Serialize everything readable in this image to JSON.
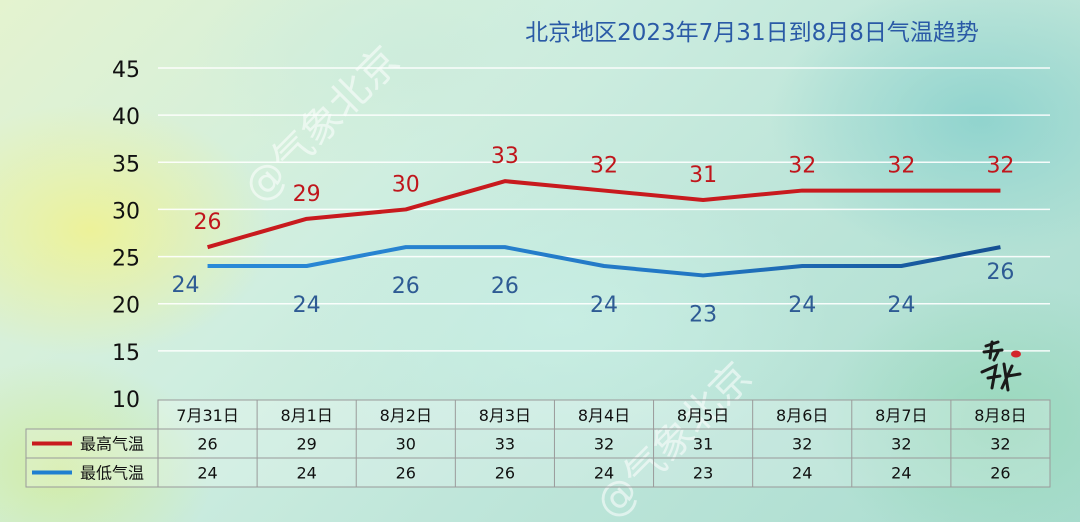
{
  "watermark": "@气象北京",
  "chart_data": {
    "type": "line",
    "title": "北京地区2023年7月31日到8月8日气温趋势",
    "categories": [
      "7月31日",
      "8月1日",
      "8月2日",
      "8月3日",
      "8月4日",
      "8月5日",
      "8月6日",
      "8月7日",
      "8月8日"
    ],
    "ylim": [
      10,
      45
    ],
    "yticks": [
      10,
      15,
      20,
      25,
      30,
      35,
      40,
      45
    ],
    "grid": true,
    "legend": "table-left",
    "series": [
      {
        "name": "最高气温",
        "values": [
          26,
          29,
          30,
          33,
          32,
          31,
          32,
          32,
          32
        ],
        "color": "#c81a1e",
        "label_color": "#c0161c"
      },
      {
        "name": "最低气温",
        "values": [
          24,
          24,
          26,
          26,
          24,
          23,
          24,
          24,
          26
        ],
        "color": "#1f7fd0",
        "label_color": "#2e5b94"
      }
    ]
  },
  "colors": {
    "title": "#2a5aa6",
    "axis_text": "#111111",
    "grid": "#ffffff",
    "table_border": "#9a9a9a"
  }
}
